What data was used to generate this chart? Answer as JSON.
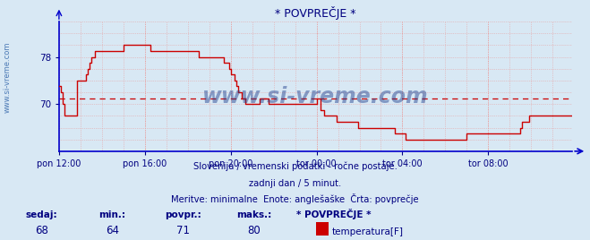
{
  "title": "* POVPREČJE *",
  "bg_color": "#d8e8f4",
  "plot_bg_color": "#d8e8f4",
  "line_color": "#cc0000",
  "axis_color": "#0000cc",
  "grid_color": "#e8a0a0",
  "text_color": "#000080",
  "watermark": "www.si-vreme.com",
  "watermark_color": "#1a3a8a",
  "subtitle1": "Slovenija / vremenski podatki - ročne postaje.",
  "subtitle2": "zadnji dan / 5 minut.",
  "subtitle3": "Meritve: minimalne  Enote: anglešaške  Črta: povprečje",
  "footer_labels": [
    "sedaj:",
    "min.:",
    "povpr.:",
    "maks.:",
    "* POVPREČJE *"
  ],
  "footer_values": [
    "68",
    "64",
    "71",
    "80"
  ],
  "legend_label": "temperatura[F]",
  "legend_color": "#cc0000",
  "xticklabels": [
    "pon 12:00",
    "pon 16:00",
    "pon 20:00",
    "tor 00:00",
    "tor 04:00",
    "tor 08:00"
  ],
  "xtick_positions": [
    0,
    48,
    96,
    144,
    192,
    240
  ],
  "yticks": [
    70,
    78
  ],
  "ylim": [
    62,
    84
  ],
  "xlim": [
    0,
    287
  ],
  "hline_y": 71,
  "hline_color": "#cc0000",
  "left_label": "www.si-vreme.com",
  "temperature_data": [
    73,
    72,
    70,
    68,
    68,
    68,
    68,
    68,
    68,
    68,
    74,
    74,
    74,
    74,
    74,
    75,
    76,
    77,
    78,
    78,
    79,
    79,
    79,
    79,
    79,
    79,
    79,
    79,
    79,
    79,
    79,
    79,
    79,
    79,
    79,
    79,
    80,
    80,
    80,
    80,
    80,
    80,
    80,
    80,
    80,
    80,
    80,
    80,
    80,
    80,
    80,
    79,
    79,
    79,
    79,
    79,
    79,
    79,
    79,
    79,
    79,
    79,
    79,
    79,
    79,
    79,
    79,
    79,
    79,
    79,
    79,
    79,
    79,
    79,
    79,
    79,
    79,
    79,
    78,
    78,
    78,
    78,
    78,
    78,
    78,
    78,
    78,
    78,
    78,
    78,
    78,
    78,
    77,
    77,
    77,
    76,
    75,
    75,
    74,
    73,
    72,
    72,
    71,
    71,
    70,
    70,
    70,
    70,
    70,
    70,
    70,
    70,
    71,
    71,
    71,
    71,
    71,
    70,
    70,
    70,
    70,
    70,
    70,
    70,
    70,
    70,
    70,
    70,
    70,
    70,
    70,
    70,
    70,
    70,
    70,
    70,
    70,
    70,
    70,
    70,
    70,
    70,
    70,
    70,
    71,
    71,
    69,
    69,
    68,
    68,
    68,
    68,
    68,
    68,
    68,
    67,
    67,
    67,
    67,
    67,
    67,
    67,
    67,
    67,
    67,
    67,
    67,
    66,
    66,
    66,
    66,
    66,
    66,
    66,
    66,
    66,
    66,
    66,
    66,
    66,
    66,
    66,
    66,
    66,
    66,
    66,
    66,
    66,
    65,
    65,
    65,
    65,
    65,
    65,
    64,
    64,
    64,
    64,
    64,
    64,
    64,
    64,
    64,
    64,
    64,
    64,
    64,
    64,
    64,
    64,
    64,
    64,
    64,
    64,
    64,
    64,
    64,
    64,
    64,
    64,
    64,
    64,
    64,
    64,
    64,
    64,
    64,
    64,
    65,
    65,
    65,
    65,
    65,
    65,
    65,
    65,
    65,
    65,
    65,
    65,
    65,
    65,
    65,
    65,
    65,
    65,
    65,
    65,
    65,
    65,
    65,
    65,
    65,
    65,
    65,
    65,
    65,
    65,
    66,
    67,
    67,
    67,
    67,
    68,
    68,
    68,
    68,
    68,
    68,
    68,
    68,
    68,
    68,
    68,
    68,
    68,
    68,
    68,
    68,
    68,
    68,
    68,
    68,
    68,
    68,
    68,
    68,
    68
  ]
}
